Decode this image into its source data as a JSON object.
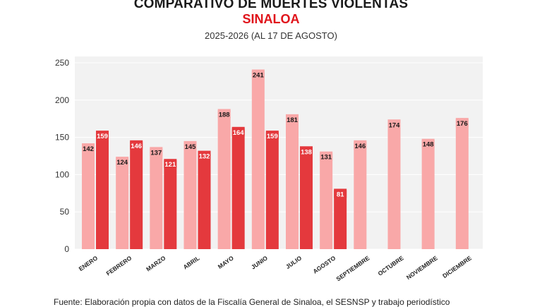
{
  "header": {
    "title": "COMPARATIVO DE MUERTES VIOLENTAS",
    "subtitle": "SINALOA",
    "period": "2025-2026 (AL 17 DE AGOSTO)"
  },
  "footer": {
    "source": "Fuente: Elaboración propia con datos de la Fiscalía General de Sinaloa, el SESNSP y trabajo periodístico"
  },
  "chart_data": {
    "type": "bar",
    "categories": [
      "ENERO",
      "FEBRERO",
      "MARZO",
      "ABRIL",
      "MAYO",
      "JUNIO",
      "JULIO",
      "AGOSTO",
      "SEPTIEMBRE",
      "OCTUBRE",
      "NOVIEMBRE",
      "DICIEMBRE"
    ],
    "series": [
      {
        "values": [
          142,
          124,
          137,
          145,
          188,
          241,
          181,
          131,
          146,
          174,
          148,
          176
        ],
        "color": "#f9a8a8"
      },
      {
        "values": [
          159,
          146,
          121,
          132,
          164,
          159,
          138,
          81,
          null,
          null,
          null,
          null
        ],
        "color": "#e4393d"
      }
    ],
    "ylim": [
      0,
      250
    ],
    "yticks": [
      0,
      50,
      100,
      150,
      200,
      250
    ],
    "grid": true,
    "plot_background": "#f2f2f2",
    "legend": "none"
  }
}
